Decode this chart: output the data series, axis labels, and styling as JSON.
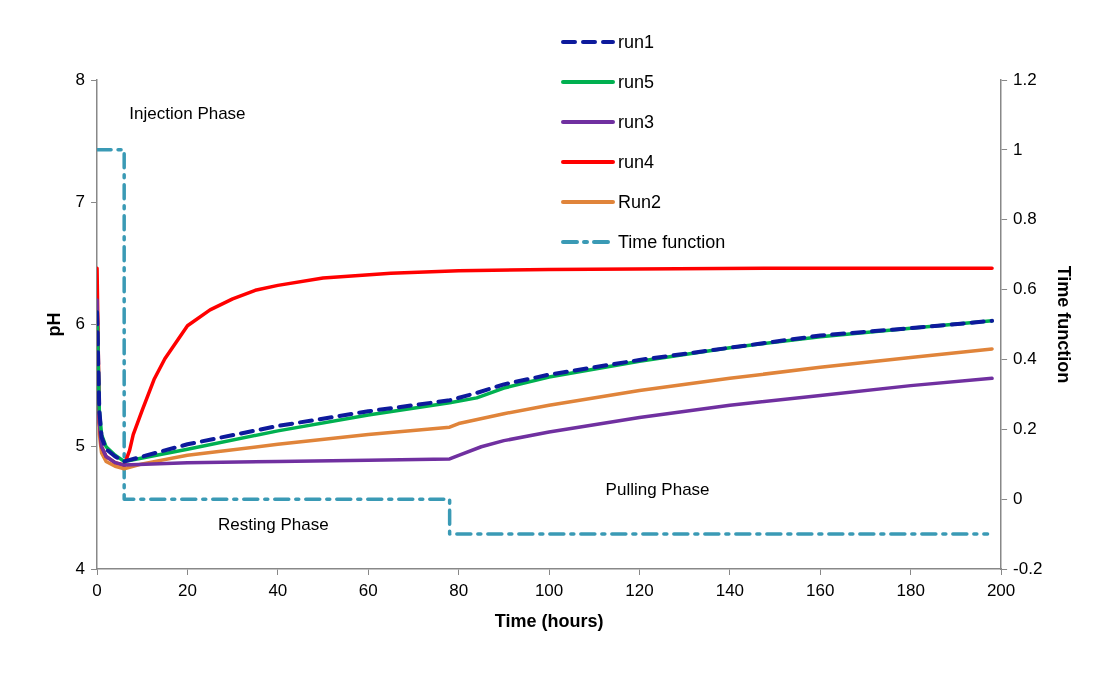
{
  "chart_data": {
    "type": "line",
    "xlabel": "Time (hours)",
    "ylabel": "pH",
    "y2label": "Time function",
    "xlim": [
      0,
      200
    ],
    "xticks": [
      0,
      20,
      40,
      60,
      80,
      100,
      120,
      140,
      160,
      180,
      200
    ],
    "ylim": [
      4,
      8
    ],
    "yticks": [
      4,
      5,
      6,
      7,
      8
    ],
    "y2lim": [
      -0.2,
      1.2
    ],
    "y2ticks": [
      -0.2,
      0,
      0.2,
      0.4,
      0.6,
      0.8,
      1,
      1.2
    ],
    "legend": "top",
    "marker": "none",
    "annotations": [
      "Injection Phase",
      "Resting Phase",
      "Pulling Phase"
    ],
    "series": [
      {
        "name": "run1",
        "color": "#0d1a9c",
        "line_style": "dashed",
        "x": [
          0,
          0.5,
          1,
          2,
          4,
          6,
          20,
          40,
          60,
          78,
          84,
          90,
          100,
          120,
          140,
          160,
          180,
          198
        ],
        "values": [
          6.1,
          5.3,
          5.08,
          4.98,
          4.92,
          4.88,
          5.02,
          5.17,
          5.29,
          5.38,
          5.44,
          5.51,
          5.59,
          5.71,
          5.81,
          5.91,
          5.97,
          6.03
        ]
      },
      {
        "name": "run5",
        "color": "#00b050",
        "line_style": "solid",
        "x": [
          0,
          0.5,
          1,
          2,
          4,
          6,
          20,
          40,
          60,
          78,
          84,
          90,
          100,
          120,
          140,
          160,
          180,
          198
        ],
        "values": [
          6.1,
          5.3,
          5.1,
          5.0,
          4.93,
          4.88,
          4.98,
          5.13,
          5.26,
          5.36,
          5.4,
          5.48,
          5.57,
          5.7,
          5.81,
          5.9,
          5.97,
          6.03
        ]
      },
      {
        "name": "run3",
        "color": "#7030a0",
        "line_style": "solid",
        "x": [
          0,
          0.5,
          1,
          2,
          4,
          6,
          20,
          40,
          60,
          78,
          80,
          85,
          90,
          100,
          120,
          140,
          160,
          180,
          198
        ],
        "values": [
          6.2,
          5.2,
          5.0,
          4.92,
          4.87,
          4.85,
          4.87,
          4.88,
          4.89,
          4.9,
          4.93,
          5.0,
          5.05,
          5.12,
          5.24,
          5.34,
          5.42,
          5.5,
          5.56
        ]
      },
      {
        "name": "run4",
        "color": "#ff0000",
        "line_style": "solid",
        "x": [
          0,
          0.5,
          1,
          2,
          4,
          6,
          7.2,
          8,
          10,
          12.6,
          15,
          20,
          25,
          30,
          35,
          40,
          50,
          65,
          80,
          100,
          150,
          198
        ],
        "values": [
          6.46,
          5.2,
          5.0,
          4.92,
          4.87,
          4.85,
          4.97,
          5.1,
          5.3,
          5.55,
          5.72,
          5.99,
          6.12,
          6.21,
          6.28,
          6.32,
          6.38,
          6.42,
          6.44,
          6.45,
          6.46,
          6.46
        ]
      },
      {
        "name": "Run2",
        "color": "#e0843a",
        "line_style": "solid",
        "x": [
          0,
          0.5,
          1,
          2,
          4,
          6,
          10,
          20,
          40,
          60,
          78,
          80,
          90,
          100,
          120,
          140,
          160,
          180,
          198
        ],
        "values": [
          6.2,
          5.1,
          4.95,
          4.88,
          4.84,
          4.82,
          4.86,
          4.93,
          5.02,
          5.1,
          5.16,
          5.19,
          5.27,
          5.34,
          5.46,
          5.56,
          5.65,
          5.73,
          5.8
        ]
      },
      {
        "name": "Time function",
        "color": "#3a9ab5",
        "line_style": "dashdot",
        "axis": "y2",
        "x": [
          0,
          6,
          6,
          78,
          78,
          197
        ],
        "values": [
          1,
          1,
          0,
          0,
          -0.1,
          -0.1
        ]
      }
    ]
  }
}
